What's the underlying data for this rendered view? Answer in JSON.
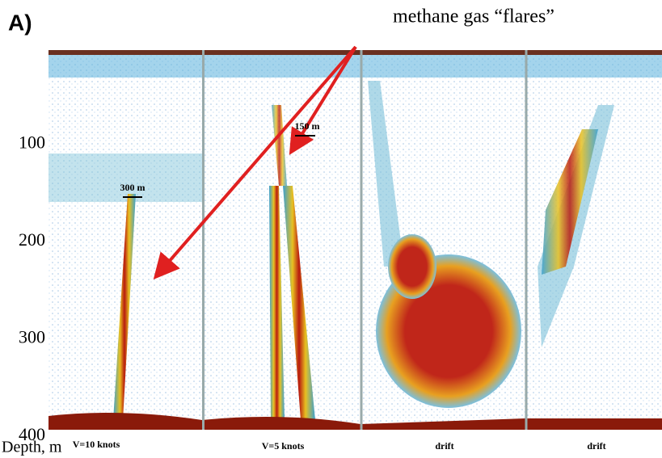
{
  "panel_label": "A)",
  "annotation": "methane gas “flares”",
  "depth_axis": {
    "label": "Depth, m",
    "ticks": [
      100,
      200,
      300,
      400
    ]
  },
  "panels": [
    {
      "label": "V=10 knots",
      "scale": "300 m"
    },
    {
      "label": "V=5 knots",
      "scale": "150 m"
    },
    {
      "label": "drift"
    },
    {
      "label": "drift"
    }
  ]
}
